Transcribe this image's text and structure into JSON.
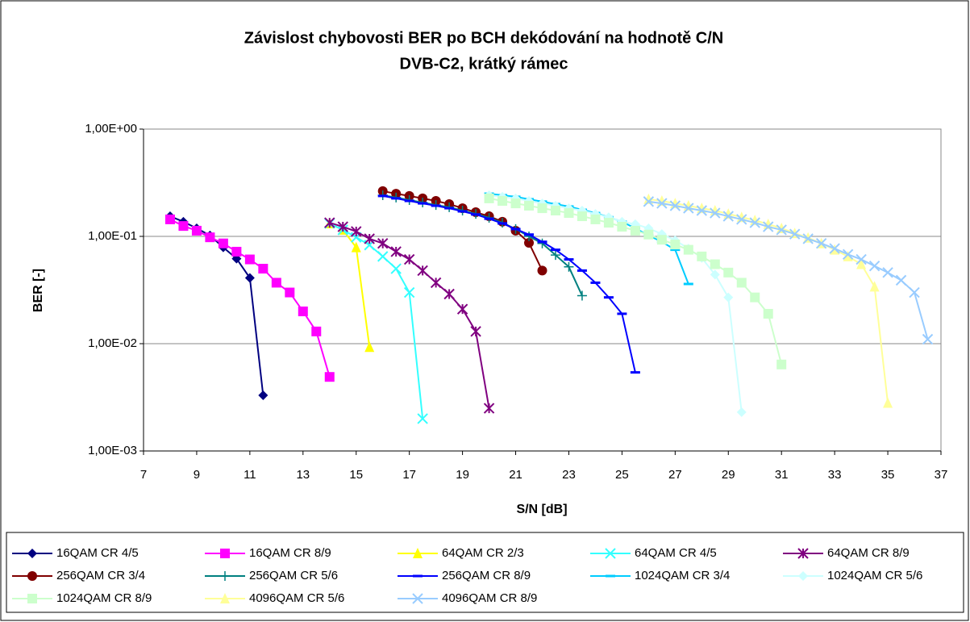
{
  "chart_data": {
    "type": "line",
    "title": [
      "Závislost chybovosti BER po BCH dekódování na hodnotě C/N",
      "DVB-C2, krátký rámec"
    ],
    "x_label": "S/N [dB]",
    "y_label": "BER [-]",
    "xlim": [
      7,
      37
    ],
    "xticks": [
      7,
      9,
      11,
      13,
      15,
      17,
      19,
      21,
      23,
      25,
      27,
      29,
      31,
      33,
      35,
      37
    ],
    "ylim": [
      0.001,
      1
    ],
    "yscale": "log",
    "yticks": [
      {
        "value": 0.001,
        "label": "1,00E-03"
      },
      {
        "value": 0.01,
        "label": "1,00E-02"
      },
      {
        "value": 0.1,
        "label": "1,00E-01"
      },
      {
        "value": 1,
        "label": "1,00E+00"
      }
    ],
    "grid": true,
    "legend": "bottom",
    "series": [
      {
        "name": "16QAM CR 4/5",
        "color": "#000080",
        "marker": "diamond",
        "x": [
          8,
          8.5,
          9,
          9.5,
          10,
          10.5,
          11,
          11.5
        ],
        "values": [
          0.154,
          0.137,
          0.119,
          0.102,
          0.079,
          0.062,
          0.041,
          0.0033
        ]
      },
      {
        "name": "16QAM CR 8/9",
        "color": "#ff00ff",
        "marker": "square",
        "x": [
          8,
          8.5,
          9,
          9.5,
          10,
          10.5,
          11,
          11.5,
          12,
          12.5,
          13,
          13.5,
          14
        ],
        "values": [
          0.144,
          0.125,
          0.113,
          0.098,
          0.086,
          0.072,
          0.061,
          0.05,
          0.037,
          0.03,
          0.02,
          0.013,
          0.0049
        ]
      },
      {
        "name": "64QAM CR 2/3",
        "color": "#ffff00",
        "marker": "triangle",
        "x": [
          14,
          14.5,
          15,
          15.5
        ],
        "values": [
          0.132,
          0.115,
          0.079,
          0.0093
        ]
      },
      {
        "name": "64QAM CR 4/5",
        "color": "#33ffff",
        "marker": "x",
        "x": [
          14,
          14.5,
          15,
          15.5,
          16,
          16.5,
          17,
          17.5
        ],
        "values": [
          0.132,
          0.115,
          0.098,
          0.083,
          0.065,
          0.05,
          0.03,
          0.002
        ]
      },
      {
        "name": "64QAM CR 8/9",
        "color": "#800080",
        "marker": "star",
        "x": [
          14,
          14.5,
          15,
          15.5,
          16,
          16.5,
          17,
          17.5,
          18,
          18.5,
          19,
          19.5,
          20
        ],
        "values": [
          0.134,
          0.123,
          0.111,
          0.095,
          0.086,
          0.072,
          0.061,
          0.048,
          0.037,
          0.029,
          0.021,
          0.013,
          0.0025
        ]
      },
      {
        "name": "256QAM CR 3/4",
        "color": "#800000",
        "marker": "circle",
        "x": [
          16,
          16.5,
          17,
          17.5,
          18,
          18.5,
          19,
          19.5,
          20,
          20.5,
          21,
          21.5,
          22
        ],
        "values": [
          0.264,
          0.25,
          0.238,
          0.226,
          0.214,
          0.2,
          0.183,
          0.168,
          0.154,
          0.137,
          0.113,
          0.087,
          0.048
        ]
      },
      {
        "name": "256QAM CR 5/6",
        "color": "#008080",
        "marker": "plus",
        "x": [
          16,
          16.5,
          17,
          17.5,
          18,
          18.5,
          19,
          19.5,
          20,
          20.5,
          21,
          21.5,
          22,
          22.5,
          23,
          23.5
        ],
        "values": [
          0.242,
          0.23,
          0.218,
          0.207,
          0.196,
          0.187,
          0.174,
          0.162,
          0.149,
          0.134,
          0.117,
          0.1,
          0.086,
          0.067,
          0.052,
          0.028
        ]
      },
      {
        "name": "256QAM CR 8/9",
        "color": "#0000ff",
        "marker": "dash",
        "x": [
          16,
          16.5,
          17,
          17.5,
          18,
          18.5,
          19,
          19.5,
          20,
          20.5,
          21,
          21.5,
          22,
          22.5,
          23,
          23.5,
          24,
          24.5,
          25,
          25.5
        ],
        "values": [
          0.238,
          0.226,
          0.214,
          0.203,
          0.193,
          0.183,
          0.171,
          0.16,
          0.146,
          0.132,
          0.117,
          0.104,
          0.089,
          0.075,
          0.061,
          0.048,
          0.037,
          0.027,
          0.019,
          0.0054
        ]
      },
      {
        "name": "1024QAM CR 3/4",
        "color": "#00ccff",
        "marker": "dash",
        "x": [
          20,
          20.5,
          21,
          21.5,
          22,
          22.5,
          23,
          23.5,
          24,
          24.5,
          25,
          25.5,
          26,
          26.5,
          27,
          27.5
        ],
        "values": [
          0.25,
          0.242,
          0.234,
          0.222,
          0.211,
          0.2,
          0.19,
          0.177,
          0.165,
          0.151,
          0.137,
          0.119,
          0.102,
          0.089,
          0.075,
          0.036
        ]
      },
      {
        "name": "1024QAM CR 5/6",
        "color": "#ccffff",
        "marker": "diamond",
        "x": [
          20,
          20.5,
          21,
          21.5,
          22,
          22.5,
          23,
          23.5,
          24,
          24.5,
          25,
          25.5,
          26,
          26.5,
          27,
          27.5,
          28,
          28.5,
          29,
          29.5
        ],
        "values": [
          0.242,
          0.234,
          0.226,
          0.214,
          0.203,
          0.193,
          0.183,
          0.174,
          0.162,
          0.151,
          0.137,
          0.13,
          0.119,
          0.105,
          0.092,
          0.077,
          0.063,
          0.044,
          0.027,
          0.0023
        ]
      },
      {
        "name": "1024QAM CR 8/9",
        "color": "#ccffcc",
        "marker": "square",
        "x": [
          20,
          20.5,
          21,
          21.5,
          22,
          22.5,
          23,
          23.5,
          24,
          24.5,
          25,
          25.5,
          26,
          26.5,
          27,
          27.5,
          28,
          28.5,
          29,
          29.5,
          30,
          30.5,
          31
        ],
        "values": [
          0.226,
          0.214,
          0.203,
          0.193,
          0.183,
          0.174,
          0.165,
          0.154,
          0.144,
          0.134,
          0.123,
          0.113,
          0.104,
          0.093,
          0.084,
          0.075,
          0.065,
          0.055,
          0.046,
          0.037,
          0.027,
          0.019,
          0.0064
        ]
      },
      {
        "name": "4096QAM CR 5/6",
        "color": "#ffff99",
        "marker": "triangle",
        "x": [
          26,
          26.5,
          27,
          27.5,
          28,
          28.5,
          29,
          29.5,
          30,
          30.5,
          31,
          31.5,
          32,
          32.5,
          33,
          33.5,
          34,
          34.5,
          35
        ],
        "values": [
          0.222,
          0.214,
          0.203,
          0.193,
          0.183,
          0.174,
          0.162,
          0.151,
          0.141,
          0.13,
          0.119,
          0.107,
          0.097,
          0.086,
          0.075,
          0.065,
          0.055,
          0.034,
          0.0028
        ]
      },
      {
        "name": "4096QAM CR 8/9",
        "color": "#99ccff",
        "marker": "x",
        "x": [
          26,
          26.5,
          27,
          27.5,
          28,
          28.5,
          29,
          29.5,
          30,
          30.5,
          31,
          31.5,
          32,
          32.5,
          33,
          33.5,
          34,
          34.5,
          35,
          35.5,
          36,
          36.5
        ],
        "values": [
          0.211,
          0.203,
          0.193,
          0.183,
          0.174,
          0.165,
          0.154,
          0.144,
          0.134,
          0.123,
          0.115,
          0.105,
          0.095,
          0.086,
          0.077,
          0.068,
          0.061,
          0.053,
          0.046,
          0.039,
          0.03,
          0.011
        ]
      }
    ]
  }
}
